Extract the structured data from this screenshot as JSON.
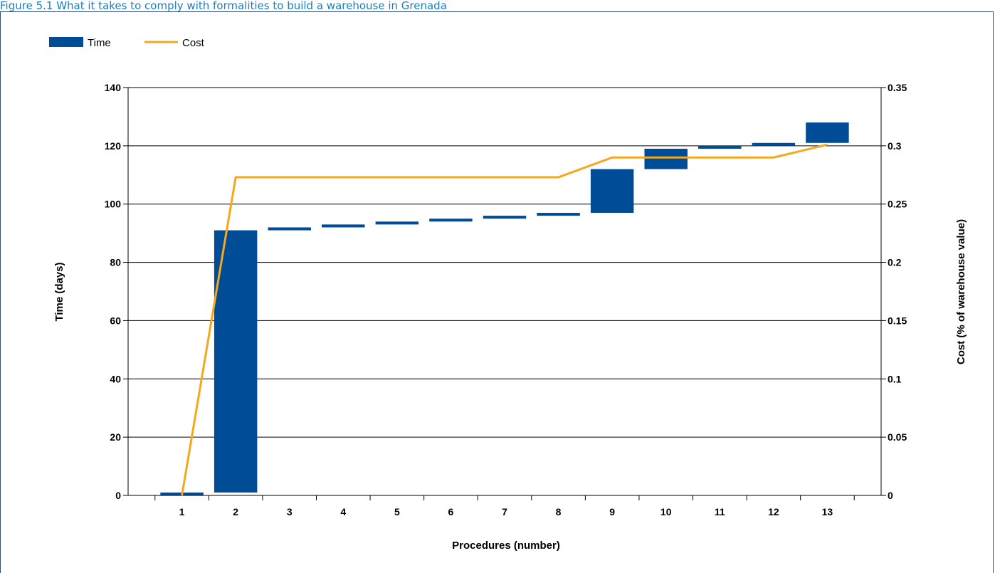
{
  "page": {
    "title": "Figure 5.1 What it takes to comply with formalities to build a warehouse in Grenada"
  },
  "chart_data": {
    "type": "bar",
    "x_label": "Procedures (number)",
    "y_label_left": "Time (days)",
    "y_label_right": "Cost (% of warehouse value)",
    "y_left_range": [
      0,
      140
    ],
    "y_left_ticks": [
      "0",
      "20",
      "40",
      "60",
      "80",
      "100",
      "120",
      "140"
    ],
    "y_right_range": [
      0,
      0.35
    ],
    "y_right_ticks": [
      "0",
      "0.05",
      "0.1",
      "0.15",
      "0.2",
      "0.25",
      "0.3",
      "0.35"
    ],
    "categories": [
      "1",
      "2",
      "3",
      "4",
      "5",
      "6",
      "7",
      "8",
      "9",
      "10",
      "11",
      "12",
      "13"
    ],
    "legend": {
      "position": "top-left",
      "time_label": "Time",
      "cost_label": "Cost"
    },
    "grid": "horizontal",
    "colors": {
      "time": "#004c97",
      "cost": "#f5a81c"
    },
    "time_series": {
      "name": "Time",
      "bars": [
        {
          "procedure": "1",
          "start": 0,
          "end": 1
        },
        {
          "procedure": "2",
          "start": 1,
          "end": 91
        },
        {
          "procedure": "3",
          "start": 91,
          "end": 92
        },
        {
          "procedure": "4",
          "start": 92,
          "end": 93
        },
        {
          "procedure": "5",
          "start": 93,
          "end": 94
        },
        {
          "procedure": "6",
          "start": 94,
          "end": 95
        },
        {
          "procedure": "7",
          "start": 95,
          "end": 96
        },
        {
          "procedure": "8",
          "start": 96,
          "end": 97
        },
        {
          "procedure": "9",
          "start": 97,
          "end": 112
        },
        {
          "procedure": "10",
          "start": 112,
          "end": 119
        },
        {
          "procedure": "11",
          "start": 119,
          "end": 120
        },
        {
          "procedure": "12",
          "start": 120,
          "end": 121
        },
        {
          "procedure": "13",
          "start": 121,
          "end": 128
        }
      ]
    },
    "cost_series": {
      "name": "Cost",
      "values": [
        0,
        0.273,
        0.273,
        0.273,
        0.273,
        0.273,
        0.273,
        0.273,
        0.29,
        0.29,
        0.29,
        0.29,
        0.301
      ]
    }
  }
}
